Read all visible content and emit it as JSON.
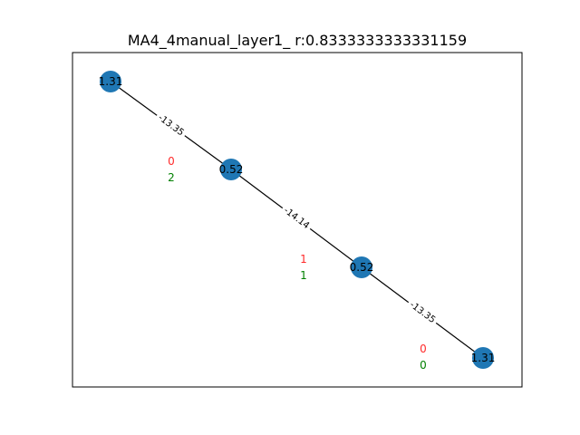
{
  "title": "MA4_4manual_layer1_  r:0.8333333333331159",
  "colors": {
    "node_fill": "#1f77b4",
    "edge": "#000000",
    "annotation_red": "#ff2a2a",
    "annotation_green": "#008000",
    "frame": "#000000"
  },
  "nodes": [
    {
      "id": "n0",
      "label": "1.31"
    },
    {
      "id": "n1",
      "label": "0.52"
    },
    {
      "id": "n2",
      "label": "0.52"
    },
    {
      "id": "n3",
      "label": "1.31"
    }
  ],
  "edges": [
    {
      "from": "n0",
      "to": "n1",
      "label": "-13.35"
    },
    {
      "from": "n1",
      "to": "n2",
      "label": "-14.14"
    },
    {
      "from": "n2",
      "to": "n3",
      "label": "-13.35"
    }
  ],
  "annotations": [
    {
      "red": "0",
      "green": "2"
    },
    {
      "red": "1",
      "green": "1"
    },
    {
      "red": "0",
      "green": "0"
    }
  ]
}
